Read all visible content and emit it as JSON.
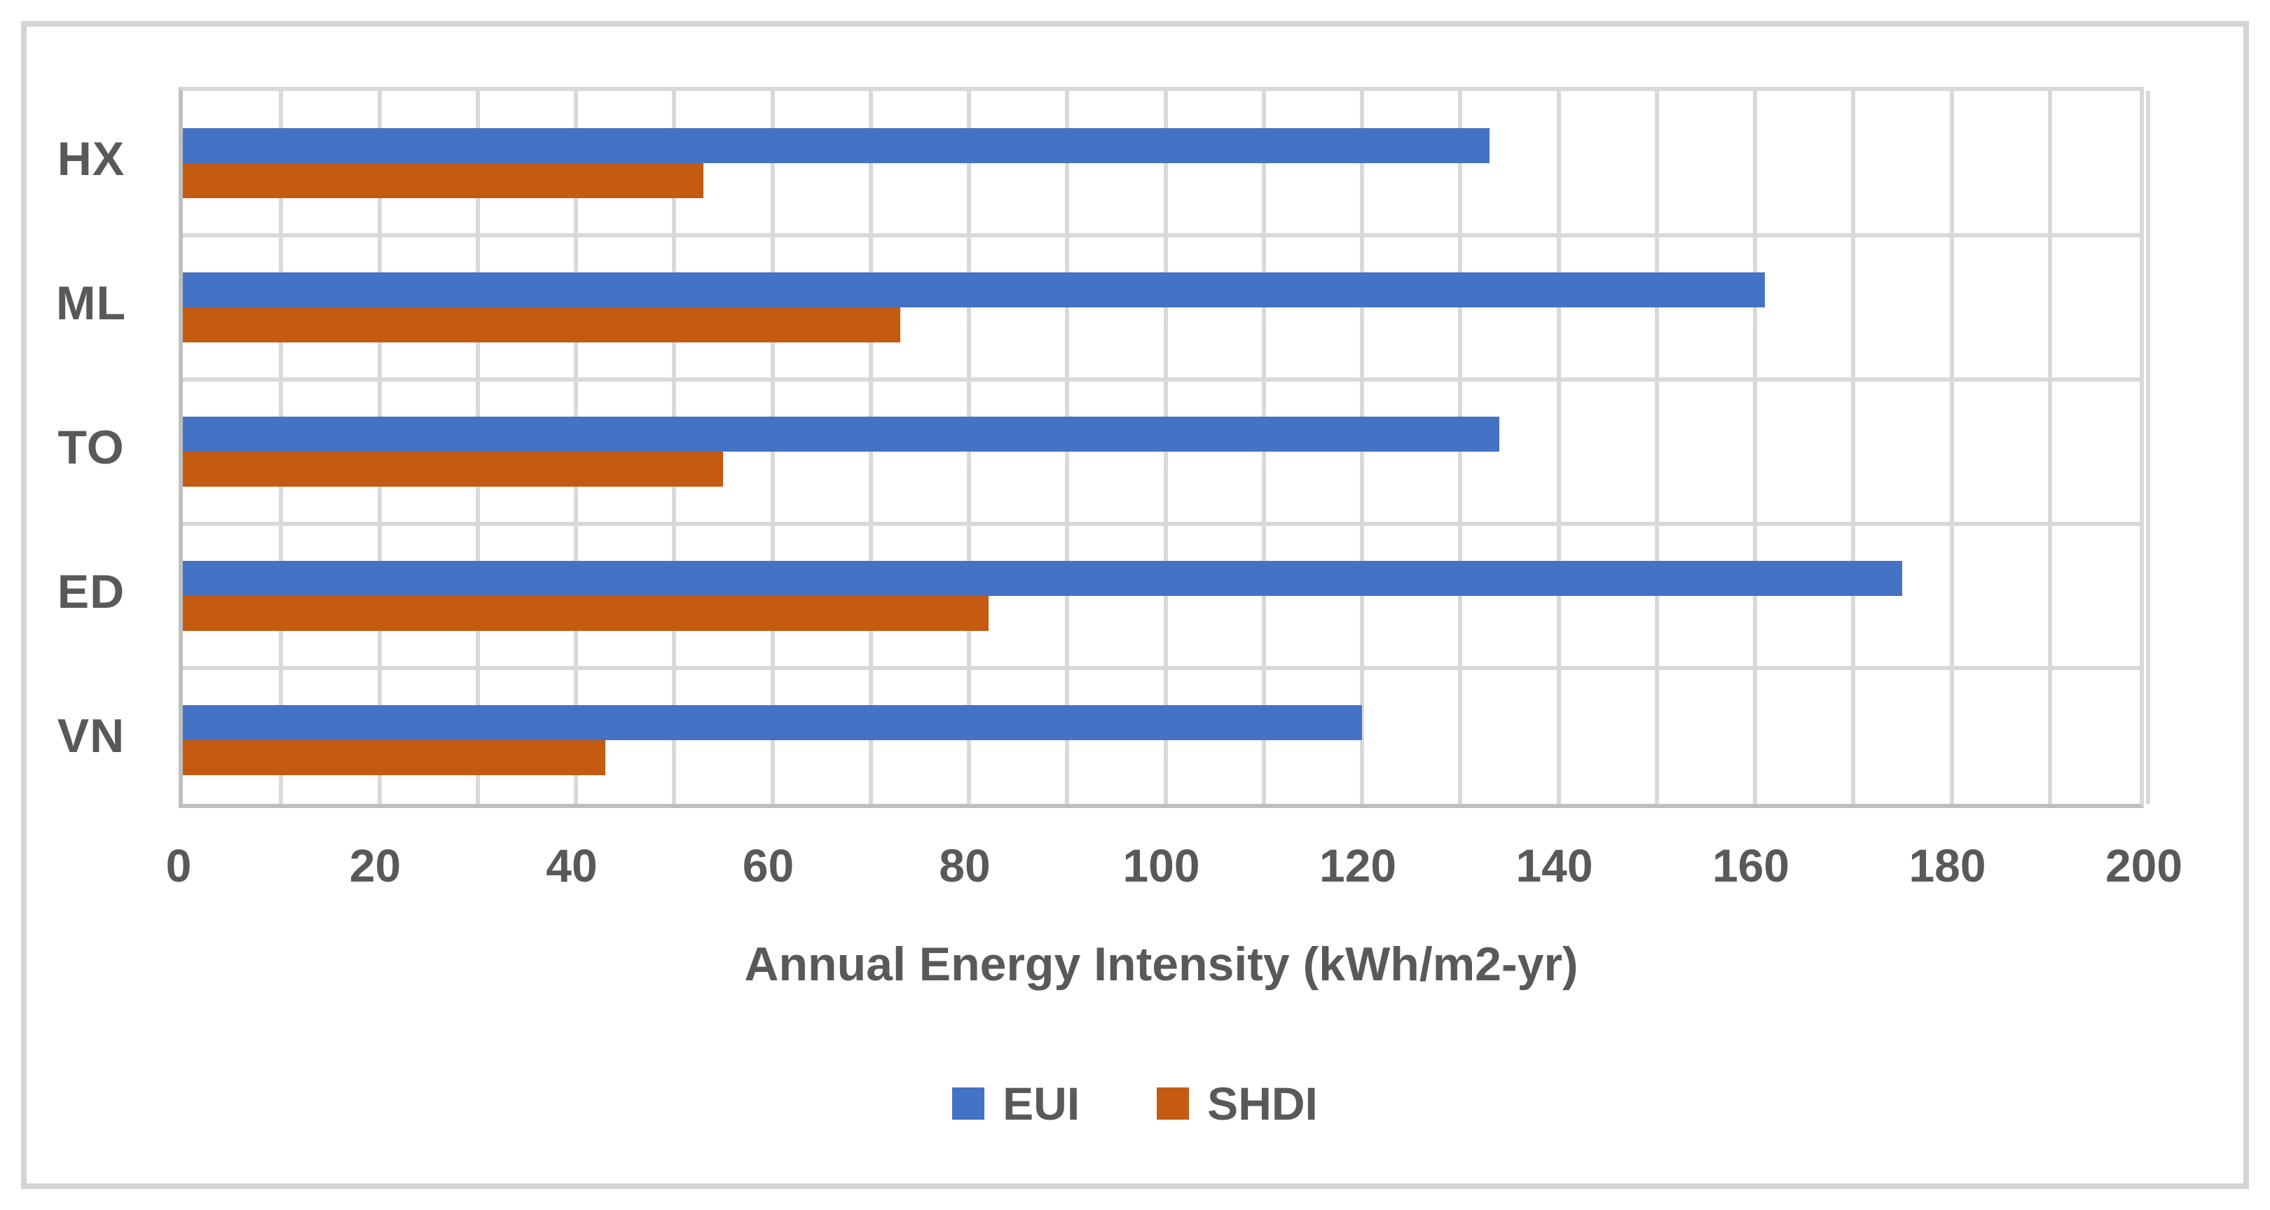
{
  "chart_data": {
    "type": "bar",
    "orientation": "horizontal",
    "title": "",
    "xlabel": "Annual Energy Intensity (kWh/m2-yr)",
    "ylabel": "",
    "categories": [
      "HX",
      "ML",
      "TO",
      "ED",
      "VN"
    ],
    "series": [
      {
        "name": "EUI",
        "color": "#4472C4",
        "values": [
          133,
          161,
          134,
          175,
          120
        ]
      },
      {
        "name": "SHDI",
        "color": "#C55A11",
        "values": [
          53,
          73,
          55,
          82,
          43
        ]
      }
    ],
    "xlim": [
      0,
      200
    ],
    "x_tick_step": 20,
    "gridline_step": 10,
    "grid": true,
    "legend_position": "bottom"
  },
  "colors": {
    "text": "#595959",
    "gridline": "#D9D9D9",
    "axis_line": "#BFBFBF",
    "figure_border": "#D4D4D4",
    "background": "#FFFFFF"
  }
}
